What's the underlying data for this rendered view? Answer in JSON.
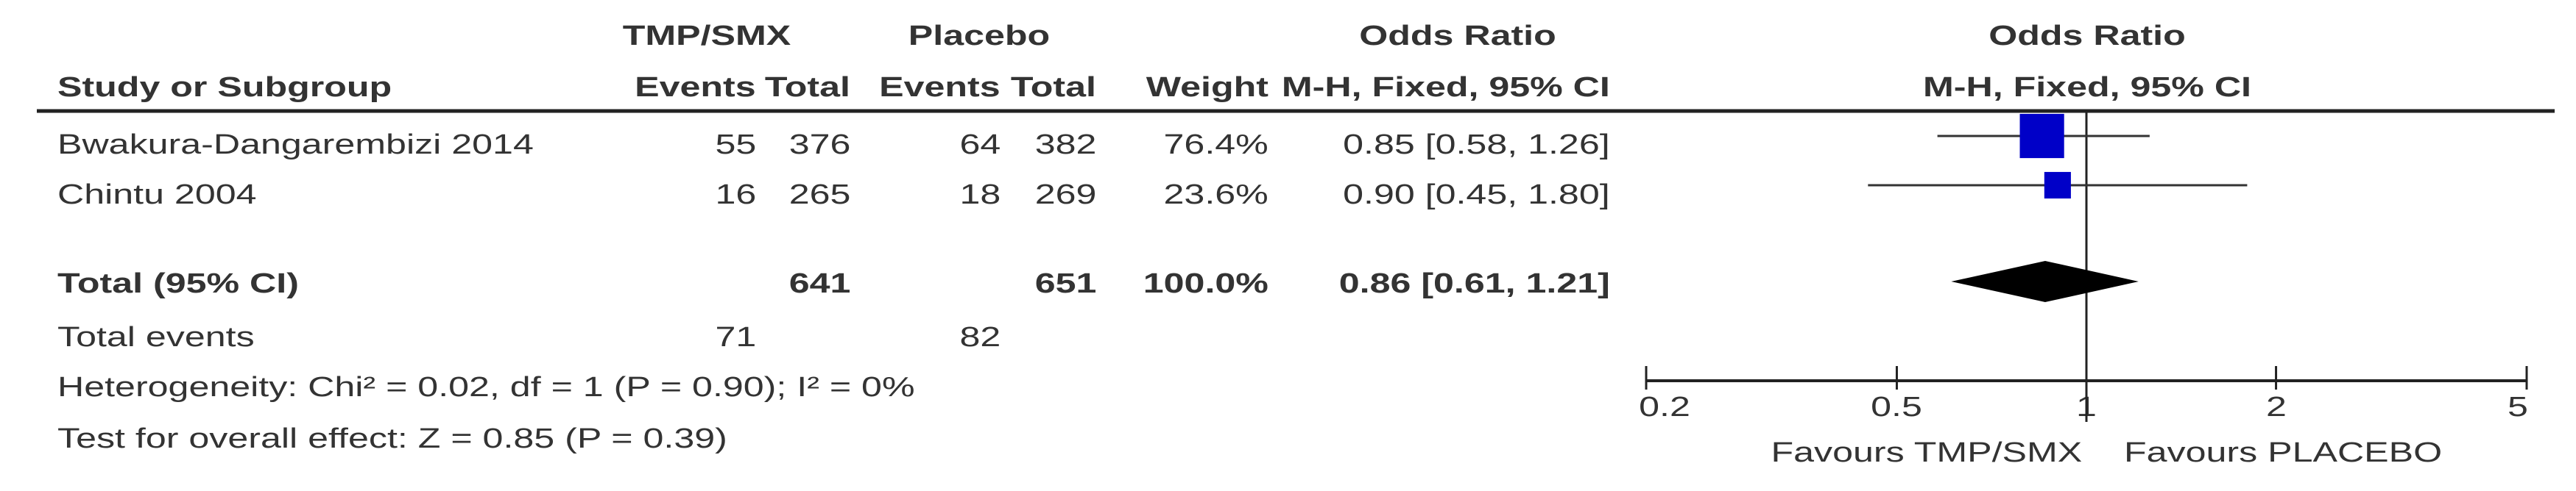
{
  "chart_data": {
    "type": "forest",
    "headers": {
      "group1": "TMP/SMX",
      "group2": "Placebo",
      "effect_col": "Odds Ratio",
      "plot_title": "Odds Ratio",
      "study": "Study or Subgroup",
      "events1": "Events",
      "total1": "Total",
      "events2": "Events",
      "total2": "Total",
      "weight": "Weight",
      "method": "M-H, Fixed, 95% CI",
      "plot_method": "M-H, Fixed, 95% CI"
    },
    "studies": [
      {
        "name": "Bwakura-Dangarembizi  2014",
        "events1": "55",
        "total1": "376",
        "events2": "64",
        "total2": "382",
        "weight_label": "76.4%",
        "weight": 76.4,
        "ci_label": "0.85 [0.58, 1.26]",
        "or": 0.85,
        "lo": 0.58,
        "hi": 1.26
      },
      {
        "name": "Chintu 2004",
        "events1": "16",
        "total1": "265",
        "events2": "18",
        "total2": "269",
        "weight_label": "23.6%",
        "weight": 23.6,
        "ci_label": "0.90 [0.45, 1.80]",
        "or": 0.9,
        "lo": 0.45,
        "hi": 1.8
      }
    ],
    "total": {
      "name": "Total (95% CI)",
      "total1": "641",
      "total2": "651",
      "weight_label": "100.0%",
      "ci_label": "0.86 [0.61, 1.21]",
      "or": 0.86,
      "lo": 0.61,
      "hi": 1.21
    },
    "total_events": {
      "label": "Total events",
      "events1": "71",
      "events2": "82"
    },
    "heterogeneity": "Heterogeneity: Chi² = 0.02, df = 1 (P = 0.90); I² = 0%",
    "overall_effect": "Test for overall effect: Z = 0.85 (P = 0.39)",
    "x_axis": {
      "scale": "log",
      "range": [
        0.2,
        5
      ],
      "ticks": [
        "0.2",
        "0.5",
        "1",
        "2",
        "5"
      ],
      "tick_values": [
        0.2,
        0.5,
        1,
        2,
        5
      ]
    },
    "favours_left": "Favours TMP/SMX",
    "favours_right": "Favours PLACEBO",
    "colors": {
      "study_marker": "#0000c8",
      "diamond": "#000000",
      "text": "#333333"
    }
  }
}
